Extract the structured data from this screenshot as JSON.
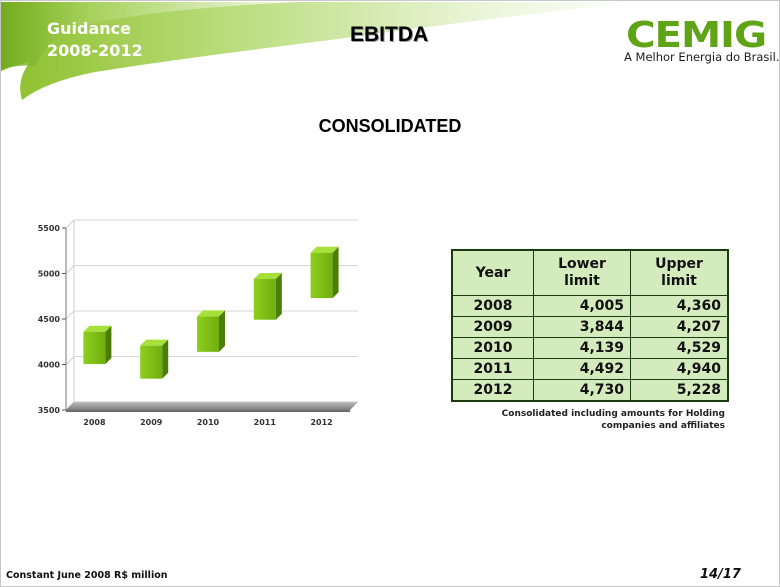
{
  "header": {
    "guidance_line1": "Guidance",
    "guidance_line2": "2008-2012",
    "title": "EBITDA",
    "logo_wordmark": "CEMIG",
    "logo_tagline": "A Melhor Energia do Brasil."
  },
  "subtitle": "CONSOLIDATED",
  "colors": {
    "accent_green": "#7ab317",
    "table_fill": "#d4ebbe",
    "table_border": "#1b3a10"
  },
  "chart_data": {
    "type": "bar",
    "subtype": "floating-range",
    "categories": [
      "2008",
      "2009",
      "2010",
      "2011",
      "2012"
    ],
    "series": [
      {
        "name": "Lower limit",
        "values": [
          4005,
          3844,
          4139,
          4492,
          4730
        ]
      },
      {
        "name": "Upper limit",
        "values": [
          4360,
          4207,
          4529,
          4940,
          5228
        ]
      }
    ],
    "ylim": [
      3500,
      5500
    ],
    "yticks": [
      "3500",
      "4000",
      "4500",
      "5000",
      "5500"
    ],
    "grid": true,
    "legend": "none"
  },
  "table": {
    "headers": [
      "Year",
      "Lower limit",
      "Upper limit"
    ],
    "rows": [
      [
        "2008",
        "4,005",
        "4,360"
      ],
      [
        "2009",
        "3,844",
        "4,207"
      ],
      [
        "2010",
        "4,139",
        "4,529"
      ],
      [
        "2011",
        "4,492",
        "4,940"
      ],
      [
        "2012",
        "4,730",
        "5,228"
      ]
    ]
  },
  "note": "Consolidated including amounts for Holding companies and affiliates",
  "footer": {
    "units": "Constant June 2008 R$ million",
    "page": "14/17"
  }
}
